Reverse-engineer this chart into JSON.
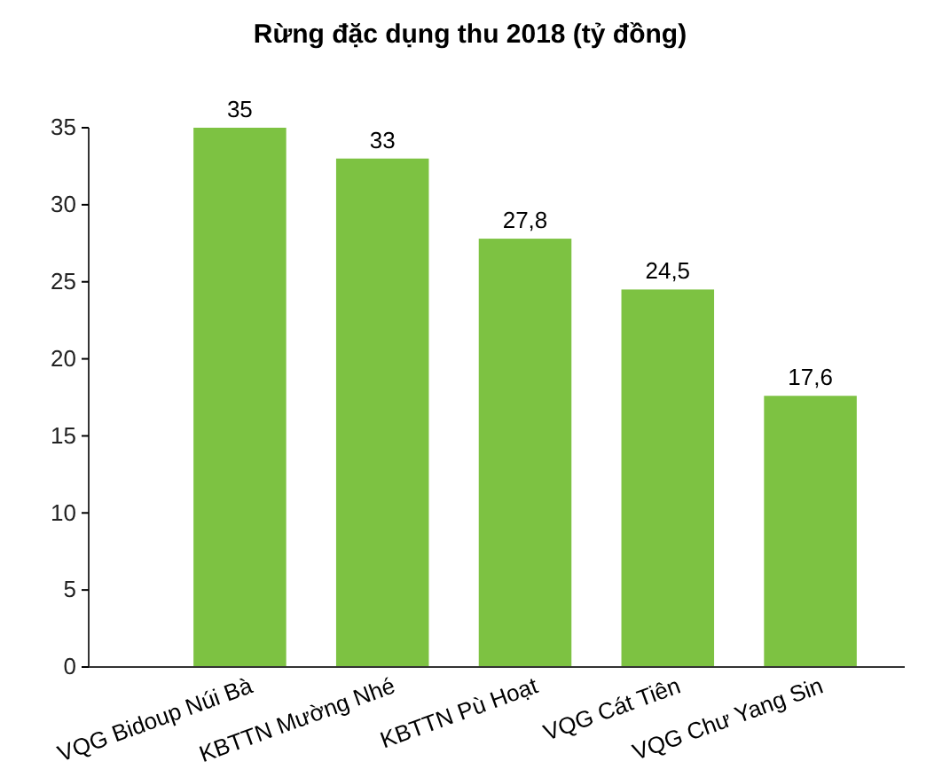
{
  "chart_data": {
    "type": "bar",
    "title": "Rừng đặc dụng thu 2018 (tỷ đồng)",
    "categories": [
      "VQG Bidoup Núi Bà",
      "KBTTN Mường Nhé",
      "KBTTN Pù Hoạt",
      "VQG Cát Tiên",
      "VQG Chư Yang Sin"
    ],
    "values": [
      35,
      33,
      27.8,
      24.5,
      17.6
    ],
    "value_labels": [
      "35",
      "33",
      "27,8",
      "24,5",
      "17,6"
    ],
    "color": "#7dc242",
    "ylim": [
      0,
      35
    ],
    "yticks": [
      0,
      5,
      10,
      15,
      20,
      25,
      30,
      35
    ],
    "grid": false
  }
}
